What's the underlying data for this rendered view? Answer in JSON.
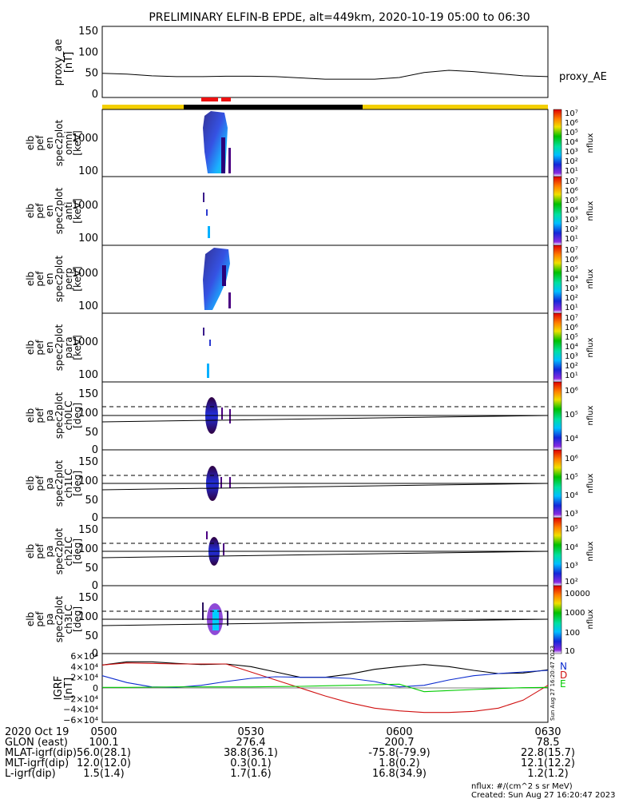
{
  "title": "PRELIMINARY ELFIN-B EPDE, alt=449km, 2020-10-19 05:00 to 06:30",
  "panels": {
    "ae": {
      "ylabel": [
        "proxy_ae",
        "[nT]"
      ],
      "legend": "proxy_AE",
      "yticks": [
        "150",
        "100",
        "50",
        "0"
      ]
    },
    "omni": {
      "ylabel": [
        "elb",
        "pef",
        "en",
        "spec2plot",
        "omni",
        "[keV]"
      ],
      "yticks": [
        "1000",
        "100"
      ],
      "cb_ticks": [
        "10⁷",
        "10⁶",
        "10⁵",
        "10⁴",
        "10³",
        "10²",
        "10¹"
      ],
      "cb_label": "nflux"
    },
    "anti": {
      "ylabel": [
        "elb",
        "pef",
        "en",
        "spec2plot",
        "anti",
        "[keV]"
      ],
      "yticks": [
        "1000",
        "100"
      ],
      "cb_ticks": [
        "10⁷",
        "10⁶",
        "10⁵",
        "10⁴",
        "10³",
        "10²",
        "10¹"
      ],
      "cb_label": "nflux"
    },
    "perp": {
      "ylabel": [
        "elb",
        "pef",
        "en",
        "spec2plot",
        "perp",
        "[keV]"
      ],
      "yticks": [
        "1000",
        "100"
      ],
      "cb_ticks": [
        "10⁷",
        "10⁶",
        "10⁵",
        "10⁴",
        "10³",
        "10²",
        "10¹"
      ],
      "cb_label": "nflux"
    },
    "para": {
      "ylabel": [
        "elb",
        "pef",
        "en",
        "spec2plot",
        "para",
        "[keV]"
      ],
      "yticks": [
        "1000",
        "100"
      ],
      "cb_ticks": [
        "10⁷",
        "10⁶",
        "10⁵",
        "10⁴",
        "10³",
        "10²",
        "10¹"
      ],
      "cb_label": "nflux"
    },
    "ch0": {
      "ylabel": [
        "elb",
        "pef",
        "pa",
        "spec2plot",
        "ch0LC",
        "[deg]"
      ],
      "yticks": [
        "150",
        "100",
        "50",
        "0"
      ],
      "cb_ticks": [
        "10⁶",
        "10⁵",
        "10⁴"
      ],
      "cb_label": "nflux"
    },
    "ch1": {
      "ylabel": [
        "elb",
        "pef",
        "pa",
        "spec2plot",
        "ch1LC",
        "[deg]"
      ],
      "yticks": [
        "150",
        "100",
        "50",
        "0"
      ],
      "cb_ticks": [
        "10⁶",
        "10⁵",
        "10⁴",
        "10³"
      ],
      "cb_label": "nflux"
    },
    "ch2": {
      "ylabel": [
        "elb",
        "pef",
        "pa",
        "spec2plot",
        "ch2LC",
        "[deg]"
      ],
      "yticks": [
        "150",
        "100",
        "50",
        "0"
      ],
      "cb_ticks": [
        "10⁵",
        "10⁴",
        "10³",
        "10²"
      ],
      "cb_label": "nflux"
    },
    "ch3": {
      "ylabel": [
        "elb",
        "pef",
        "pa",
        "spec2plot",
        "ch3LC",
        "[deg]"
      ],
      "yticks": [
        "150",
        "100",
        "50",
        "0"
      ],
      "cb_ticks": [
        "10000",
        "1000",
        "100",
        "10"
      ],
      "cb_label": "nflux"
    },
    "igrf": {
      "ylabel": [
        "IGRF",
        "[nT]"
      ],
      "yticks": [
        "6×10⁴",
        "4×10⁴",
        "2×10⁴",
        "0",
        "−2×10⁴",
        "−4×10⁴",
        "−6×10⁴"
      ],
      "legend": [
        "N",
        "D",
        "E"
      ],
      "stamp": "Sun Aug 27 16:20:47 2023"
    }
  },
  "footer": {
    "rows": [
      {
        "label": "2020 Oct 19",
        "values": [
          "0500",
          "0530",
          "0600",
          "0630"
        ]
      },
      {
        "label": "GLON (east)",
        "values": [
          "100.1",
          "276.4",
          "200.7",
          "78.5"
        ]
      },
      {
        "label": "MLAT-igrf(dip)",
        "values": [
          "56.0(28.1)",
          "38.8(36.1)",
          "-75.8(-79.9)",
          "22.8(15.7)"
        ]
      },
      {
        "label": "MLT-igrf(dip)",
        "values": [
          "12.0(12.0)",
          "0.3(0.1)",
          "1.8(0.2)",
          "12.1(12.2)"
        ]
      },
      {
        "label": "L-igrf(dip)",
        "values": [
          "1.5(1.4)",
          "1.7(1.6)",
          "16.8(34.9)",
          "1.2(1.2)"
        ]
      }
    ],
    "units_note": "nflux: #/(cm^2 s sr MeV)",
    "created": "Created: Sun Aug 27 16:20:47 2023"
  },
  "chart_data": {
    "type": "line",
    "time_range": [
      "2020-10-19 05:00",
      "2020-10-19 06:30"
    ],
    "x_ticks": [
      "0500",
      "0530",
      "0600",
      "0630"
    ],
    "proxy_ae": {
      "ylim": [
        0,
        150
      ],
      "x_min": [
        0,
        5,
        10,
        15,
        20,
        25,
        30,
        35,
        40,
        45,
        50,
        55,
        60,
        65,
        70,
        75,
        80,
        85,
        90
      ],
      "values": [
        48,
        46,
        42,
        40,
        40,
        41,
        41,
        40,
        37,
        34,
        34,
        34,
        38,
        50,
        55,
        52,
        47,
        42,
        40
      ]
    },
    "science_zones_min": [
      [
        8.9,
        12.5
      ],
      [
        13.6,
        16.0
      ]
    ],
    "eclipse_bar": {
      "yellow_min": [
        [
          0,
          17.4
        ],
        [
          55.3,
          90
        ]
      ],
      "black_min": [
        [
          17.4,
          55.3
        ]
      ]
    },
    "spectra": {
      "energy_ylim_keV": [
        70,
        7000
      ],
      "log_y": true,
      "burst_min": [
        [
          11.5,
          16.5
        ]
      ],
      "colorbars": {
        "energy": {
          "min": 10,
          "max": 10000000
        },
        "ch0LC": {
          "min": 1000,
          "max": 1000000
        },
        "ch1LC": {
          "min": 100,
          "max": 1000000
        },
        "ch2LC": {
          "min": 10,
          "max": 1000000
        },
        "ch3LC": {
          "min": 10,
          "max": 10000
        }
      }
    },
    "pitch_angle": {
      "ylim": [
        0,
        180
      ],
      "loss_cone_solid": [
        [
          0,
          78
        ],
        [
          15,
          73
        ],
        [
          30,
          77
        ],
        [
          45,
          82
        ],
        [
          60,
          85
        ],
        [
          75,
          88
        ],
        [
          90,
          92
        ]
      ],
      "loss_cone_dashed": [
        [
          0,
          111
        ],
        [
          90,
          111
        ]
      ],
      "ref_line": [
        [
          0,
          90
        ],
        [
          90,
          90
        ]
      ]
    },
    "igrf": {
      "ylim": [
        -60000,
        60000
      ],
      "x_min": [
        0,
        5,
        10,
        15,
        20,
        25,
        30,
        35,
        40,
        45,
        50,
        55,
        60,
        65,
        70,
        75,
        80,
        85,
        90
      ],
      "series": [
        {
          "name": "N",
          "color": "#000000",
          "values": [
            43000,
            49000,
            49000,
            46000,
            44000,
            45000,
            40000,
            30000,
            20000,
            20000,
            26000,
            35000,
            40000,
            44000,
            40000,
            33000,
            27000,
            28000,
            34000
          ]
        },
        {
          "name": "D",
          "color": "#d01010",
          "values": [
            43000,
            47000,
            46000,
            45000,
            45000,
            45000,
            30000,
            15000,
            0,
            -15000,
            -28000,
            -38000,
            -43000,
            -46000,
            -46000,
            -44000,
            -38000,
            -23000,
            5000
          ]
        },
        {
          "name": "E",
          "color": "#0c2ccf",
          "values": [
            23000,
            10000,
            2000,
            1000,
            5000,
            12000,
            18000,
            21000,
            20000,
            20000,
            18000,
            12000,
            2000,
            5000,
            15000,
            23000,
            27000,
            30000,
            33000
          ]
        },
        {
          "name": "E_green",
          "color": "#00cc00",
          "values": [
            1000,
            1000,
            1500,
            2000,
            2000,
            2000,
            2000,
            2500,
            3000,
            4000,
            5000,
            6000,
            7000,
            -7000,
            -5000,
            -3000,
            -1000,
            500,
            1000
          ]
        }
      ]
    }
  }
}
